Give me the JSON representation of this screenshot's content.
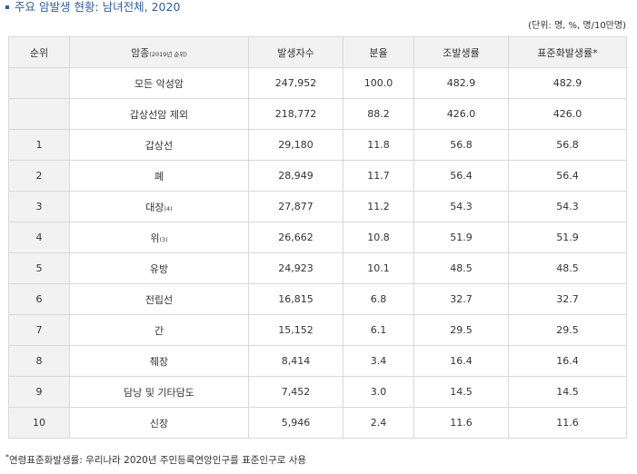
{
  "title": "주요 암발생 현황: 남녀전체, 2020",
  "unit_note": "(단위: 명, %, 명/10만명)",
  "table": {
    "headers": {
      "rank": "순위",
      "cancer_type": "암종",
      "cancer_type_sub": "(2019년 순위)",
      "cases": "발생자수",
      "share": "분율",
      "crude_rate": "조발생률",
      "asr": "표준화발생률*"
    },
    "rows": [
      {
        "rank": "",
        "name": "모든 악성암",
        "sub": "",
        "cases": "247,952",
        "share": "100.0",
        "crude": "482.9",
        "asr": "482.9"
      },
      {
        "rank": "",
        "name": "갑상선암 제외",
        "sub": "",
        "cases": "218,772",
        "share": "88.2",
        "crude": "426.0",
        "asr": "426.0"
      },
      {
        "rank": "1",
        "name": "갑상선",
        "sub": "",
        "cases": "29,180",
        "share": "11.8",
        "crude": "56.8",
        "asr": "56.8"
      },
      {
        "rank": "2",
        "name": "폐",
        "sub": "",
        "cases": "28,949",
        "share": "11.7",
        "crude": "56.4",
        "asr": "56.4"
      },
      {
        "rank": "3",
        "name": "대장",
        "sub": "(4)",
        "cases": "27,877",
        "share": "11.2",
        "crude": "54.3",
        "asr": "54.3"
      },
      {
        "rank": "4",
        "name": "위",
        "sub": "(3)",
        "cases": "26,662",
        "share": "10.8",
        "crude": "51.9",
        "asr": "51.9"
      },
      {
        "rank": "5",
        "name": "유방",
        "sub": "",
        "cases": "24,923",
        "share": "10.1",
        "crude": "48.5",
        "asr": "48.5"
      },
      {
        "rank": "6",
        "name": "전립선",
        "sub": "",
        "cases": "16,815",
        "share": "6.8",
        "crude": "32.7",
        "asr": "32.7"
      },
      {
        "rank": "7",
        "name": "간",
        "sub": "",
        "cases": "15,152",
        "share": "6.1",
        "crude": "29.5",
        "asr": "29.5"
      },
      {
        "rank": "8",
        "name": "췌장",
        "sub": "",
        "cases": "8,414",
        "share": "3.4",
        "crude": "16.4",
        "asr": "16.4"
      },
      {
        "rank": "9",
        "name": "담낭 및 기타담도",
        "sub": "",
        "cases": "7,452",
        "share": "3.0",
        "crude": "14.5",
        "asr": "14.5"
      },
      {
        "rank": "10",
        "name": "신장",
        "sub": "",
        "cases": "5,946",
        "share": "2.4",
        "crude": "11.6",
        "asr": "11.6"
      }
    ]
  },
  "footnote": {
    "star": "*",
    "text": "연령표준화발생률: 우리나라 2020년 주민등록연앙인구를 표준인구로 사용"
  },
  "colors": {
    "title": "#2b5fa8",
    "header_bg": "#f2f2f2",
    "border": "#d9d9d9"
  }
}
